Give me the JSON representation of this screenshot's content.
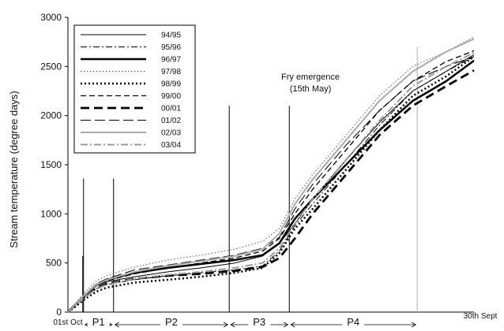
{
  "chart_data": {
    "type": "line",
    "title": "",
    "xlabel": "",
    "ylabel": "Stream temperature (degree days)",
    "ylim": [
      0,
      3000
    ],
    "xlim": [
      0,
      365
    ],
    "yticks": [
      0,
      500,
      1000,
      1500,
      2000,
      2500,
      3000
    ],
    "x_edge_labels": {
      "start": "01st Oct",
      "end": "30th Sept"
    },
    "grid": false,
    "legend_position": "top-left",
    "x": [
      0,
      5,
      15,
      26,
      35,
      60,
      90,
      120,
      150,
      175,
      190,
      204,
      220,
      250,
      280,
      310,
      340,
      365
    ],
    "series": [
      {
        "name": "94/95",
        "style": "solid-thin",
        "color": "#000000",
        "values": [
          0,
          60,
          170,
          270,
          310,
          360,
          410,
          450,
          500,
          570,
          700,
          900,
          1150,
          1550,
          1930,
          2250,
          2450,
          2620
        ]
      },
      {
        "name": "95/96",
        "style": "dashdot",
        "color": "#000000",
        "values": [
          0,
          50,
          150,
          240,
          280,
          330,
          370,
          400,
          430,
          470,
          620,
          880,
          1100,
          1500,
          1900,
          2250,
          2450,
          2600
        ]
      },
      {
        "name": "96/97",
        "style": "solid-thick",
        "color": "#000000",
        "values": [
          0,
          60,
          170,
          280,
          330,
          400,
          450,
          490,
          530,
          580,
          700,
          950,
          1150,
          1500,
          1850,
          2150,
          2350,
          2560
        ]
      },
      {
        "name": "97/98",
        "style": "dotted-thin",
        "color": "#555555",
        "values": [
          0,
          70,
          200,
          320,
          370,
          460,
          530,
          580,
          640,
          720,
          850,
          1150,
          1400,
          1800,
          2200,
          2500,
          2650,
          2800
        ]
      },
      {
        "name": "98/99",
        "style": "dotted-thick",
        "color": "#000000",
        "values": [
          0,
          40,
          130,
          210,
          250,
          300,
          330,
          360,
          400,
          450,
          600,
          850,
          1050,
          1450,
          1850,
          2200,
          2400,
          2600
        ]
      },
      {
        "name": "99/00",
        "style": "dashed-medium",
        "color": "#000000",
        "values": [
          0,
          60,
          170,
          270,
          320,
          390,
          450,
          500,
          550,
          620,
          750,
          1000,
          1250,
          1650,
          2050,
          2350,
          2550,
          2660
        ]
      },
      {
        "name": "00/01",
        "style": "dashed-thick",
        "color": "#000000",
        "values": [
          0,
          55,
          155,
          250,
          290,
          340,
          370,
          390,
          420,
          460,
          550,
          750,
          1000,
          1400,
          1800,
          2100,
          2300,
          2460
        ]
      },
      {
        "name": "01/02",
        "style": "dashed-long",
        "color": "#000000",
        "values": [
          0,
          65,
          180,
          290,
          340,
          430,
          480,
          530,
          580,
          650,
          760,
          1050,
          1300,
          1700,
          2050,
          2350,
          2500,
          2600
        ]
      },
      {
        "name": "02/03",
        "style": "solid-gray",
        "color": "#aaaaaa",
        "values": [
          0,
          60,
          175,
          280,
          330,
          410,
          470,
          520,
          570,
          640,
          800,
          1100,
          1350,
          1750,
          2150,
          2450,
          2650,
          2780
        ]
      },
      {
        "name": "03/04",
        "style": "dashdot-gray",
        "color": "#999999",
        "values": [
          0,
          50,
          150,
          240,
          280,
          340,
          380,
          410,
          450,
          500,
          650,
          900,
          1150,
          1550,
          1950,
          2300,
          2500,
          2640
        ]
      }
    ],
    "annotations": [
      {
        "text": "Fry emergence",
        "text2": "(15th May)"
      }
    ],
    "period_lines": [
      {
        "x": 14,
        "top": 1360,
        "color": "#000000"
      },
      {
        "x": 41,
        "top": 1360,
        "color": "#000000"
      },
      {
        "x": 145,
        "top": 2100,
        "color": "#000000"
      },
      {
        "x": 199,
        "top": 2100,
        "color": "#000000"
      },
      {
        "x": 314,
        "top": 2700,
        "color": "#aaaaaa"
      }
    ],
    "small_line": {
      "x": 14,
      "top": 570
    },
    "periods": [
      {
        "label": "P1",
        "from": 14,
        "to": 41
      },
      {
        "label": "P2",
        "from": 41,
        "to": 145
      },
      {
        "label": "P3",
        "from": 145,
        "to": 199
      },
      {
        "label": "P4",
        "from": 199,
        "to": 314
      }
    ]
  }
}
